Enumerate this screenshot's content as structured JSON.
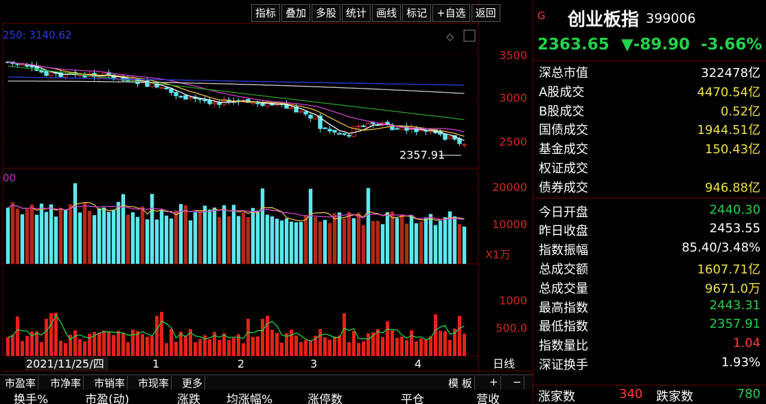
{
  "toolbar": [
    "指标",
    "叠加",
    "多股",
    "统计",
    "画线",
    "标记",
    "+自选",
    "返回"
  ],
  "main_chart": {
    "ma_label": "250: 3140.62",
    "price_ticks": [
      "3500",
      "3000",
      "2500"
    ],
    "last_low_label": "2357.91"
  },
  "volume_chart": {
    "left_label": "00",
    "ticks": [
      "20000",
      "10000"
    ],
    "unit_label": "X1万"
  },
  "amount_chart": {
    "ticks": [
      "1000",
      "500.0"
    ]
  },
  "x_axis": {
    "start_date": "2021/11/25/四",
    "labels": [
      "1",
      "2",
      "3",
      "4"
    ],
    "period": "日线"
  },
  "index": {
    "g_badge": "G",
    "name": "创业板指",
    "code": "399006",
    "price": "2363.65",
    "change": "▼-89.90",
    "pct": "-3.66%"
  },
  "stats_top": [
    {
      "label": "深总市值",
      "value": "322478亿",
      "color": "#ffffff"
    },
    {
      "label": "A股成交",
      "value": "4470.54亿",
      "color": "#f0e043"
    },
    {
      "label": "B股成交",
      "value": "0.52亿",
      "color": "#f0e043"
    },
    {
      "label": "国债成交",
      "value": "1944.51亿",
      "color": "#f0e043"
    },
    {
      "label": "基金成交",
      "value": "150.43亿",
      "color": "#f0e043"
    },
    {
      "label": "权证成交",
      "value": "",
      "color": "#f0e043"
    },
    {
      "label": "债券成交",
      "value": "946.88亿",
      "color": "#f0e043"
    }
  ],
  "stats_bottom": [
    {
      "label": "今日开盘",
      "value": "2440.30",
      "color": "#21d24a"
    },
    {
      "label": "昨日收盘",
      "value": "2453.55",
      "color": "#ffffff"
    },
    {
      "label": "指数振幅",
      "value": "85.40/3.48%",
      "color": "#ffffff"
    },
    {
      "label": "总成交额",
      "value": "1607.71亿",
      "color": "#f0e043"
    },
    {
      "label": "总成交量",
      "value": "9671.0万",
      "color": "#f0e043"
    },
    {
      "label": "最高指数",
      "value": "2443.31",
      "color": "#21d24a"
    },
    {
      "label": "最低指数",
      "value": "2357.91",
      "color": "#21d24a"
    },
    {
      "label": "指数量比",
      "value": "1.04",
      "color": "#ff3b3b"
    },
    {
      "label": "深证换手",
      "value": "1.93%",
      "color": "#ffffff"
    }
  ],
  "rise_fall": {
    "up_label": "涨家数",
    "up_value": "340",
    "down_label": "跌家数",
    "down_value": "780"
  },
  "bottom_tabs": [
    "市盈率",
    "市净率",
    "市销率",
    "市现率",
    "更多"
  ],
  "bottom_tab_right": [
    "模 板",
    "+",
    "−"
  ],
  "bottom_columns": [
    "换手%",
    "市盈(动)",
    "涨跌",
    "均涨幅%",
    "涨停数",
    "平仓",
    "营收"
  ],
  "colors": {
    "up": "#d12a1e",
    "down": "#5ee7ee",
    "green_text": "#21d24a",
    "frame": "#6a0000"
  }
}
